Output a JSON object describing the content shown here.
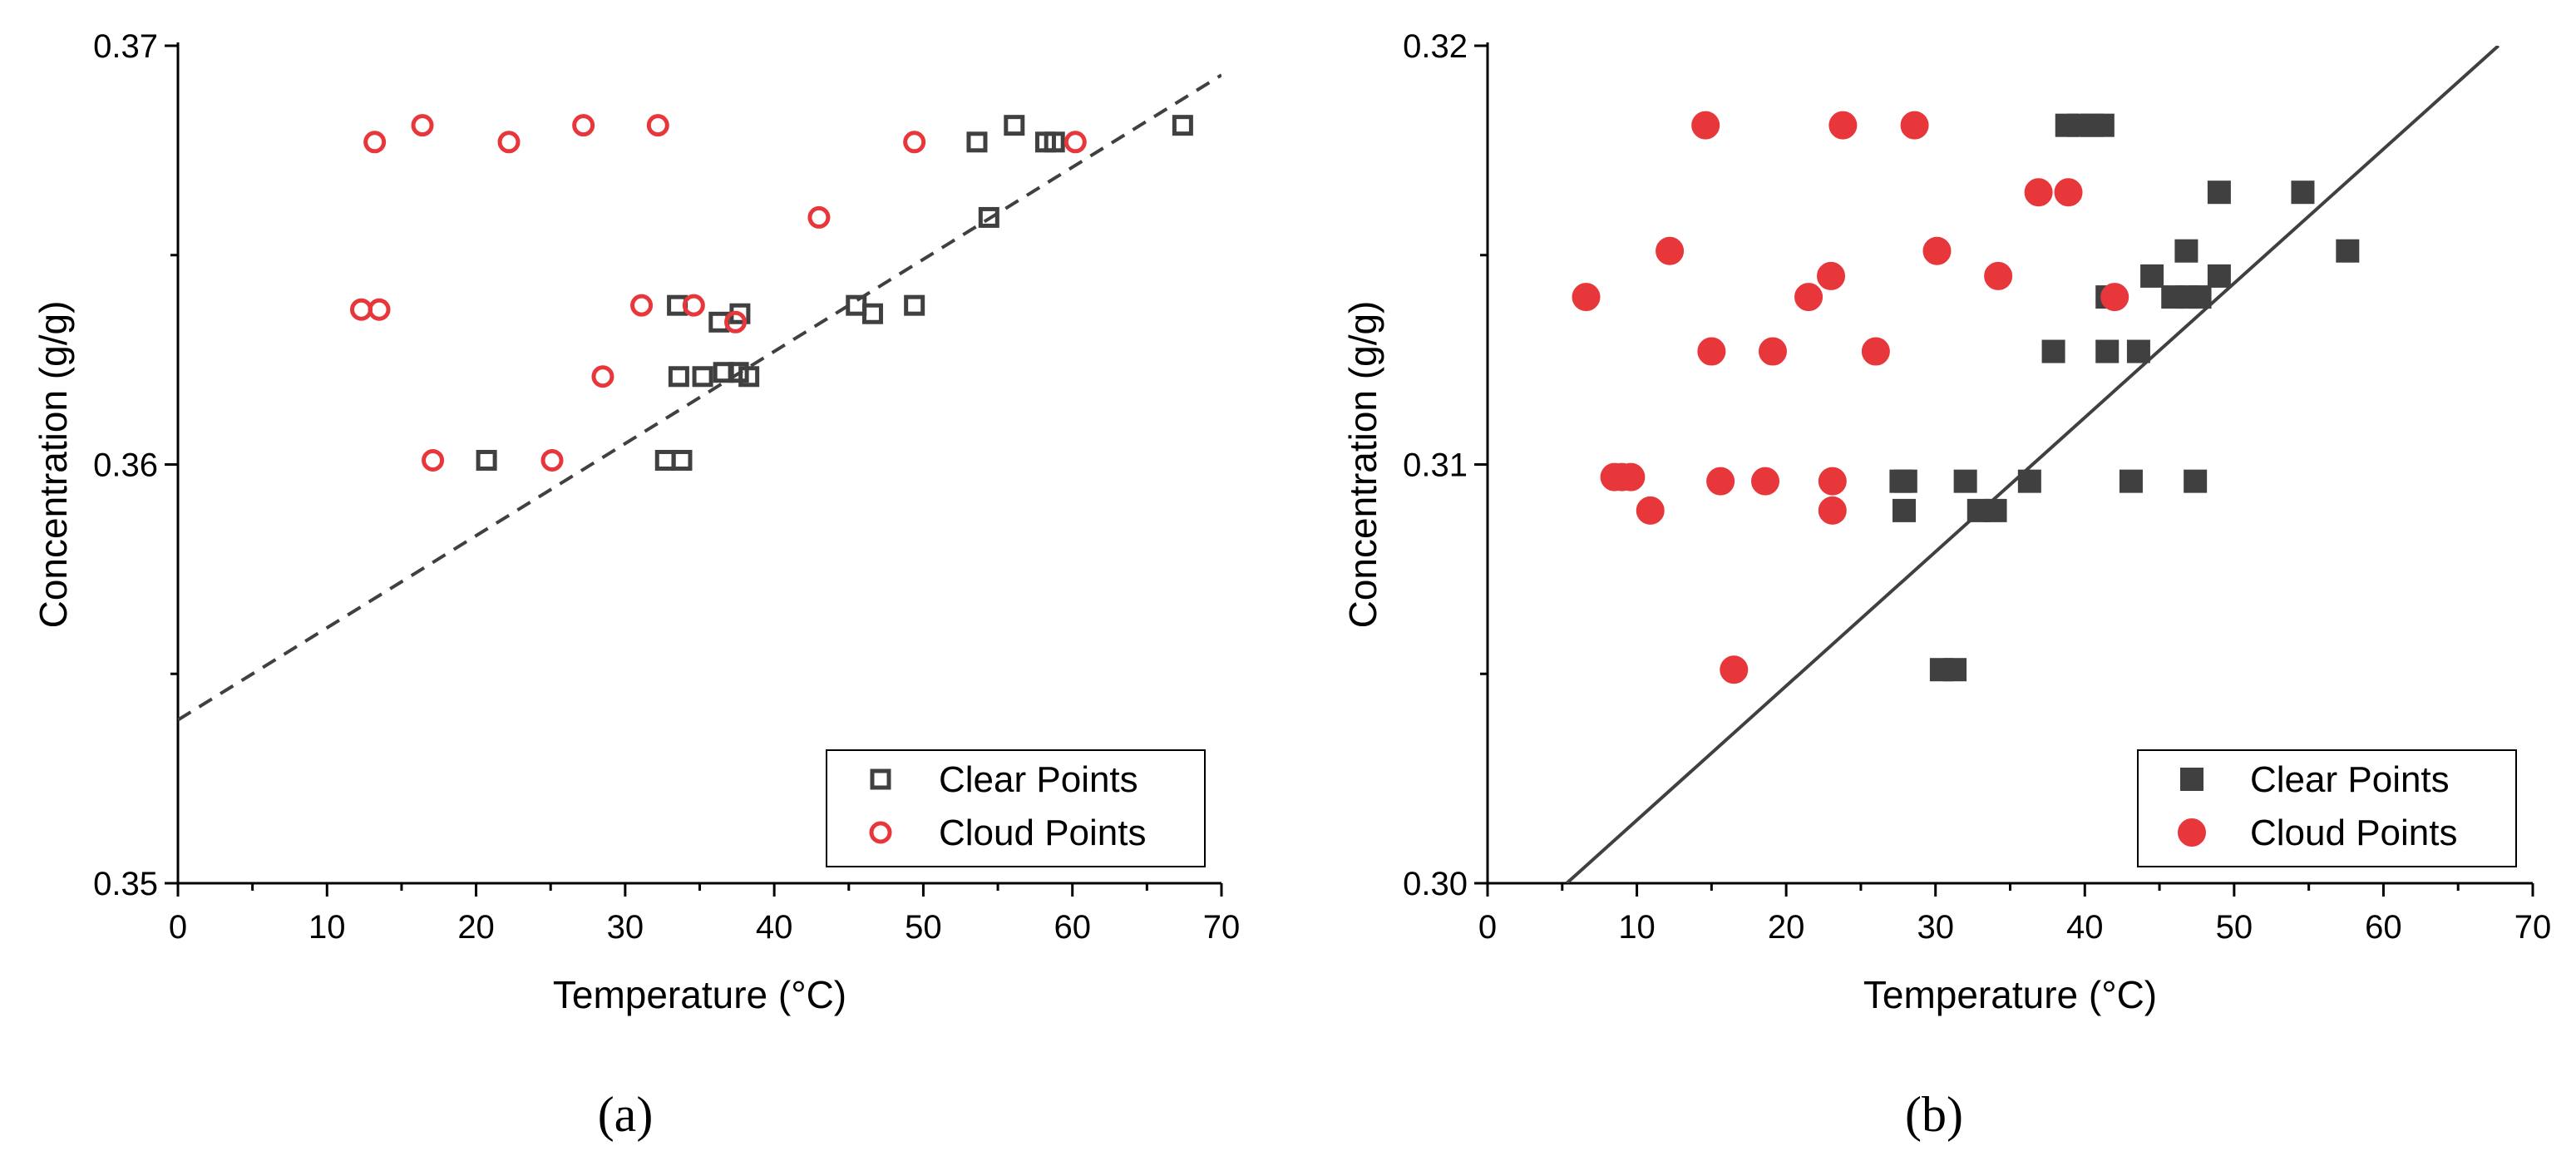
{
  "chart_data": [
    {
      "panel_label": "(a)",
      "type": "scatter",
      "xlabel": "Temperature (°C)",
      "ylabel": "Concentration (g/g)",
      "xlim": [
        0,
        70
      ],
      "ylim": [
        0.35,
        0.37
      ],
      "x_ticks": [
        0,
        10,
        20,
        30,
        40,
        50,
        60,
        70
      ],
      "x_tick_labels": [
        "0",
        "10",
        "20",
        "30",
        "40",
        "50",
        "60",
        "70"
      ],
      "y_ticks": [
        0.35,
        0.36,
        0.37
      ],
      "y_tick_labels": [
        "0.35",
        "0.36",
        "0.37"
      ],
      "grid": false,
      "legend_position": "bottom-right",
      "marker_style": "open",
      "series": [
        {
          "name": "Clear Points",
          "marker": "square",
          "color": "#404040",
          "points": [
            [
              20.7,
              0.3601
            ],
            [
              32.7,
              0.3601
            ],
            [
              33.8,
              0.3601
            ],
            [
              33.5,
              0.3638
            ],
            [
              37.7,
              0.3636
            ],
            [
              36.3,
              0.3634
            ],
            [
              33.6,
              0.3621
            ],
            [
              35.2,
              0.3621
            ],
            [
              36.6,
              0.3622
            ],
            [
              37.6,
              0.3622
            ],
            [
              38.3,
              0.3621
            ],
            [
              45.5,
              0.3638
            ],
            [
              46.6,
              0.3636
            ],
            [
              49.4,
              0.3638
            ],
            [
              54.4,
              0.3659
            ],
            [
              53.6,
              0.3677
            ],
            [
              56.1,
              0.3681
            ],
            [
              58.2,
              0.3677
            ],
            [
              58.8,
              0.3677
            ],
            [
              67.4,
              0.3681
            ]
          ]
        },
        {
          "name": "Cloud Points",
          "marker": "circle",
          "color": "#e8373b",
          "points": [
            [
              13.2,
              0.3677
            ],
            [
              16.4,
              0.3681
            ],
            [
              22.2,
              0.3677
            ],
            [
              27.2,
              0.3681
            ],
            [
              32.2,
              0.3681
            ],
            [
              49.4,
              0.3677
            ],
            [
              60.2,
              0.3677
            ],
            [
              12.3,
              0.3637
            ],
            [
              13.5,
              0.3637
            ],
            [
              31.1,
              0.3638
            ],
            [
              34.6,
              0.3638
            ],
            [
              37.4,
              0.3634
            ],
            [
              43.0,
              0.3659
            ],
            [
              28.5,
              0.3621
            ],
            [
              17.1,
              0.3601
            ],
            [
              25.1,
              0.3601
            ]
          ]
        }
      ],
      "fit_line": {
        "style": "dashed",
        "color": "#404040",
        "x": [
          0,
          70
        ],
        "y": [
          0.3539,
          0.3693
        ]
      }
    },
    {
      "panel_label": "(b)",
      "type": "scatter",
      "xlabel": "Temperature (°C)",
      "ylabel": "Concentration (g/g)",
      "xlim": [
        0,
        70
      ],
      "ylim": [
        0.3,
        0.32
      ],
      "x_ticks": [
        0,
        10,
        20,
        30,
        40,
        50,
        60,
        70
      ],
      "x_tick_labels": [
        "0",
        "10",
        "20",
        "30",
        "40",
        "50",
        "60",
        "70"
      ],
      "y_ticks": [
        0.3,
        0.31,
        0.32
      ],
      "y_tick_labels": [
        "0.30",
        "0.31",
        "0.32"
      ],
      "grid": false,
      "legend_position": "bottom-right",
      "marker_style": "filled",
      "series": [
        {
          "name": "Clear Points",
          "marker": "square",
          "color": "#404040",
          "points": [
            [
              38.8,
              0.3181
            ],
            [
              39.6,
              0.3181
            ],
            [
              40.5,
              0.3181
            ],
            [
              41.2,
              0.3181
            ],
            [
              49.0,
              0.3165
            ],
            [
              54.6,
              0.3165
            ],
            [
              46.8,
              0.3151
            ],
            [
              57.6,
              0.3151
            ],
            [
              44.5,
              0.3145
            ],
            [
              49.0,
              0.3145
            ],
            [
              41.5,
              0.314
            ],
            [
              45.9,
              0.314
            ],
            [
              46.9,
              0.314
            ],
            [
              47.7,
              0.314
            ],
            [
              37.9,
              0.3127
            ],
            [
              41.5,
              0.3127
            ],
            [
              43.6,
              0.3127
            ],
            [
              27.7,
              0.3096
            ],
            [
              28.0,
              0.3096
            ],
            [
              32.0,
              0.3096
            ],
            [
              36.3,
              0.3096
            ],
            [
              43.1,
              0.3096
            ],
            [
              47.4,
              0.3096
            ],
            [
              27.9,
              0.3089
            ],
            [
              32.9,
              0.3089
            ],
            [
              34.0,
              0.3089
            ],
            [
              30.4,
              0.3051
            ],
            [
              31.3,
              0.3051
            ]
          ]
        },
        {
          "name": "Cloud Points",
          "marker": "circle",
          "color": "#e8373b",
          "points": [
            [
              14.6,
              0.3181
            ],
            [
              23.8,
              0.3181
            ],
            [
              28.6,
              0.3181
            ],
            [
              36.9,
              0.3165
            ],
            [
              38.9,
              0.3165
            ],
            [
              12.2,
              0.3151
            ],
            [
              30.1,
              0.3151
            ],
            [
              23.0,
              0.3145
            ],
            [
              34.2,
              0.3145
            ],
            [
              6.6,
              0.314
            ],
            [
              21.5,
              0.314
            ],
            [
              42.0,
              0.314
            ],
            [
              15.0,
              0.3127
            ],
            [
              19.1,
              0.3127
            ],
            [
              26.0,
              0.3127
            ],
            [
              8.5,
              0.3097
            ],
            [
              9.0,
              0.3097
            ],
            [
              9.6,
              0.3097
            ],
            [
              15.6,
              0.3096
            ],
            [
              18.6,
              0.3096
            ],
            [
              23.1,
              0.3096
            ],
            [
              10.9,
              0.3089
            ],
            [
              23.1,
              0.3089
            ],
            [
              16.5,
              0.3051
            ]
          ]
        }
      ],
      "fit_line": {
        "style": "solid",
        "color": "#404040",
        "x": [
          5.3,
          67.7
        ],
        "y": [
          0.3,
          0.32
        ]
      }
    }
  ]
}
